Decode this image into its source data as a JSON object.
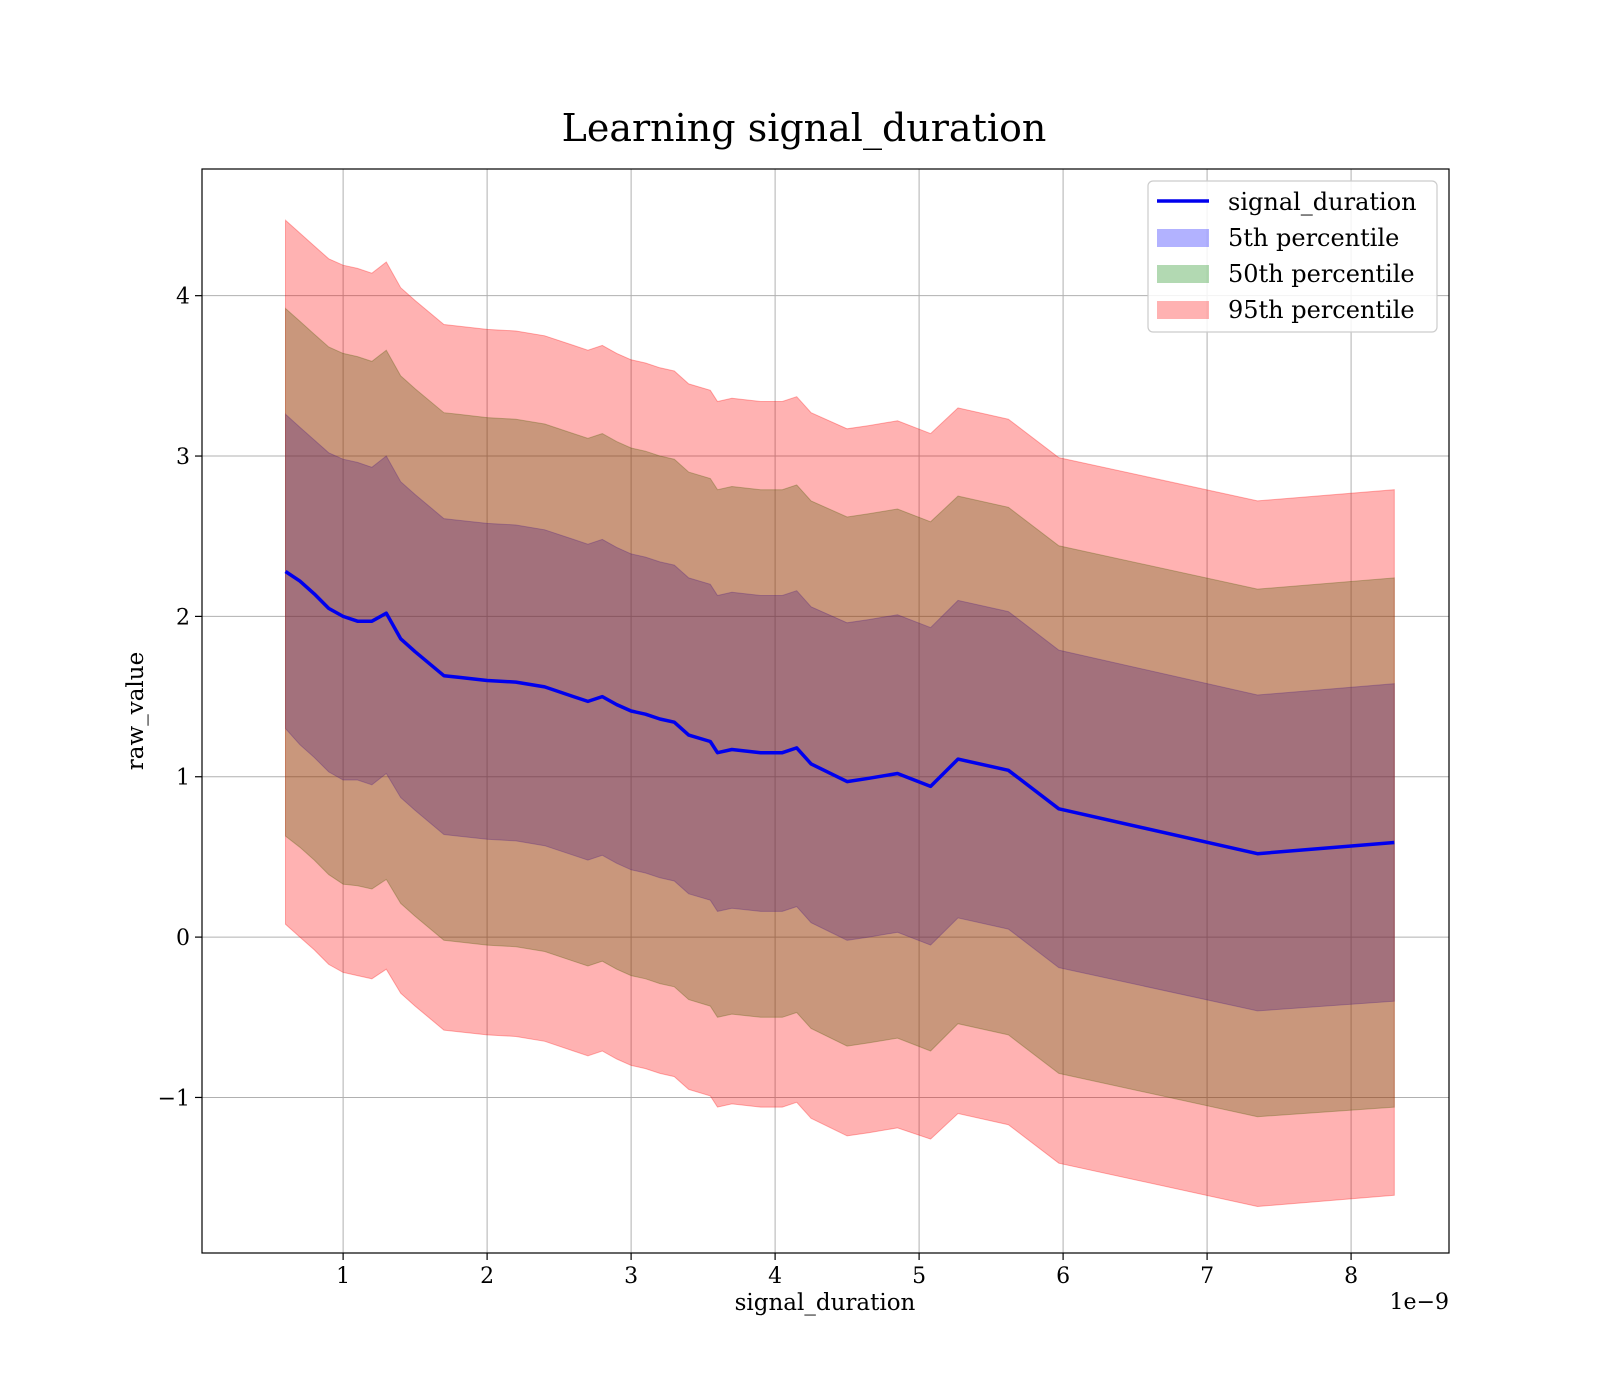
{
  "chart_data": {
    "type": "line",
    "title": "Learning signal_duration",
    "xlabel": "signal_duration",
    "ylabel": "raw_value",
    "x_offset_text": "1e−9",
    "xlim": [
      0.02,
      8.68
    ],
    "ylim": [
      -1.97,
      4.79
    ],
    "grid": true,
    "legend_position": "top-right",
    "x_ticks": [
      {
        "value": 1,
        "label": "1"
      },
      {
        "value": 2,
        "label": "2"
      },
      {
        "value": 3,
        "label": "3"
      },
      {
        "value": 4,
        "label": "4"
      },
      {
        "value": 5,
        "label": "5"
      },
      {
        "value": 6,
        "label": "6"
      },
      {
        "value": 7,
        "label": "7"
      },
      {
        "value": 8,
        "label": "8"
      }
    ],
    "y_ticks": [
      {
        "value": -1,
        "label": "−1"
      },
      {
        "value": 0,
        "label": "0"
      },
      {
        "value": 1,
        "label": "1"
      },
      {
        "value": 2,
        "label": "2"
      },
      {
        "value": 3,
        "label": "3"
      },
      {
        "value": 4,
        "label": "4"
      }
    ],
    "colors": {
      "line": "#0000ee",
      "p5": "#0000ff",
      "p50": "#008000",
      "p95": "#ff0000",
      "grid": "#b0b0b0"
    },
    "x": [
      0.6,
      0.7,
      0.8,
      0.9,
      1.0,
      1.1,
      1.2,
      1.3,
      1.4,
      1.5,
      1.7,
      1.8,
      2.0,
      2.2,
      2.4,
      2.6,
      2.7,
      2.8,
      2.9,
      3.0,
      3.1,
      3.2,
      3.3,
      3.4,
      3.55,
      3.6,
      3.7,
      3.9,
      4.05,
      4.15,
      4.25,
      4.5,
      4.65,
      4.85,
      5.08,
      5.27,
      5.62,
      5.97,
      7.35,
      8.3
    ],
    "series": [
      {
        "name": "signal_duration",
        "role": "line",
        "values": [
          2.28,
          2.22,
          2.14,
          2.05,
          2.0,
          1.97,
          1.97,
          2.02,
          1.86,
          1.78,
          1.63,
          1.62,
          1.6,
          1.59,
          1.56,
          1.5,
          1.47,
          1.5,
          1.45,
          1.41,
          1.39,
          1.36,
          1.34,
          1.26,
          1.22,
          1.15,
          1.17,
          1.15,
          1.15,
          1.18,
          1.08,
          0.97,
          0.99,
          1.02,
          0.94,
          1.11,
          1.04,
          0.8,
          0.52,
          0.59
        ]
      },
      {
        "name": "5th percentile",
        "role": "band",
        "lower": [
          1.3,
          1.2,
          1.12,
          1.03,
          0.98,
          0.98,
          0.95,
          1.02,
          0.87,
          0.79,
          0.64,
          0.63,
          0.61,
          0.6,
          0.57,
          0.51,
          0.48,
          0.51,
          0.46,
          0.42,
          0.4,
          0.37,
          0.35,
          0.27,
          0.23,
          0.16,
          0.18,
          0.16,
          0.16,
          0.19,
          0.09,
          -0.02,
          0.0,
          0.03,
          -0.05,
          0.12,
          0.05,
          -0.19,
          -0.46,
          -0.4
        ],
        "upper": [
          3.26,
          3.18,
          3.1,
          3.02,
          2.98,
          2.96,
          2.93,
          3.0,
          2.84,
          2.76,
          2.61,
          2.6,
          2.58,
          2.57,
          2.54,
          2.48,
          2.45,
          2.48,
          2.43,
          2.39,
          2.37,
          2.34,
          2.32,
          2.24,
          2.2,
          2.13,
          2.15,
          2.13,
          2.13,
          2.16,
          2.06,
          1.96,
          1.98,
          2.01,
          1.93,
          2.1,
          2.03,
          1.79,
          1.51,
          1.58
        ]
      },
      {
        "name": "50th percentile",
        "role": "band",
        "lower": [
          0.63,
          0.56,
          0.48,
          0.39,
          0.33,
          0.32,
          0.3,
          0.36,
          0.21,
          0.13,
          -0.02,
          -0.03,
          -0.05,
          -0.06,
          -0.09,
          -0.15,
          -0.18,
          -0.15,
          -0.2,
          -0.24,
          -0.26,
          -0.29,
          -0.31,
          -0.39,
          -0.43,
          -0.5,
          -0.48,
          -0.5,
          -0.5,
          -0.47,
          -0.57,
          -0.68,
          -0.66,
          -0.63,
          -0.71,
          -0.54,
          -0.61,
          -0.85,
          -1.12,
          -1.06
        ],
        "upper": [
          3.92,
          3.84,
          3.76,
          3.68,
          3.64,
          3.62,
          3.59,
          3.66,
          3.5,
          3.42,
          3.27,
          3.26,
          3.24,
          3.23,
          3.2,
          3.14,
          3.11,
          3.14,
          3.09,
          3.05,
          3.03,
          3.0,
          2.98,
          2.9,
          2.86,
          2.79,
          2.81,
          2.79,
          2.79,
          2.82,
          2.72,
          2.62,
          2.64,
          2.67,
          2.59,
          2.75,
          2.68,
          2.44,
          2.17,
          2.24
        ]
      },
      {
        "name": "95th percentile",
        "role": "band",
        "lower": [
          0.08,
          0.0,
          -0.08,
          -0.17,
          -0.22,
          -0.24,
          -0.26,
          -0.2,
          -0.35,
          -0.43,
          -0.58,
          -0.59,
          -0.61,
          -0.62,
          -0.65,
          -0.71,
          -0.74,
          -0.71,
          -0.76,
          -0.8,
          -0.82,
          -0.85,
          -0.87,
          -0.95,
          -0.99,
          -1.06,
          -1.04,
          -1.06,
          -1.06,
          -1.03,
          -1.13,
          -1.24,
          -1.22,
          -1.19,
          -1.26,
          -1.1,
          -1.17,
          -1.41,
          -1.68,
          -1.61
        ],
        "upper": [
          4.47,
          4.39,
          4.31,
          4.23,
          4.19,
          4.17,
          4.14,
          4.21,
          4.05,
          3.97,
          3.82,
          3.81,
          3.79,
          3.78,
          3.75,
          3.69,
          3.66,
          3.69,
          3.64,
          3.6,
          3.58,
          3.55,
          3.53,
          3.45,
          3.41,
          3.34,
          3.36,
          3.34,
          3.34,
          3.37,
          3.27,
          3.17,
          3.19,
          3.22,
          3.14,
          3.3,
          3.23,
          2.99,
          2.72,
          2.79
        ]
      }
    ]
  }
}
